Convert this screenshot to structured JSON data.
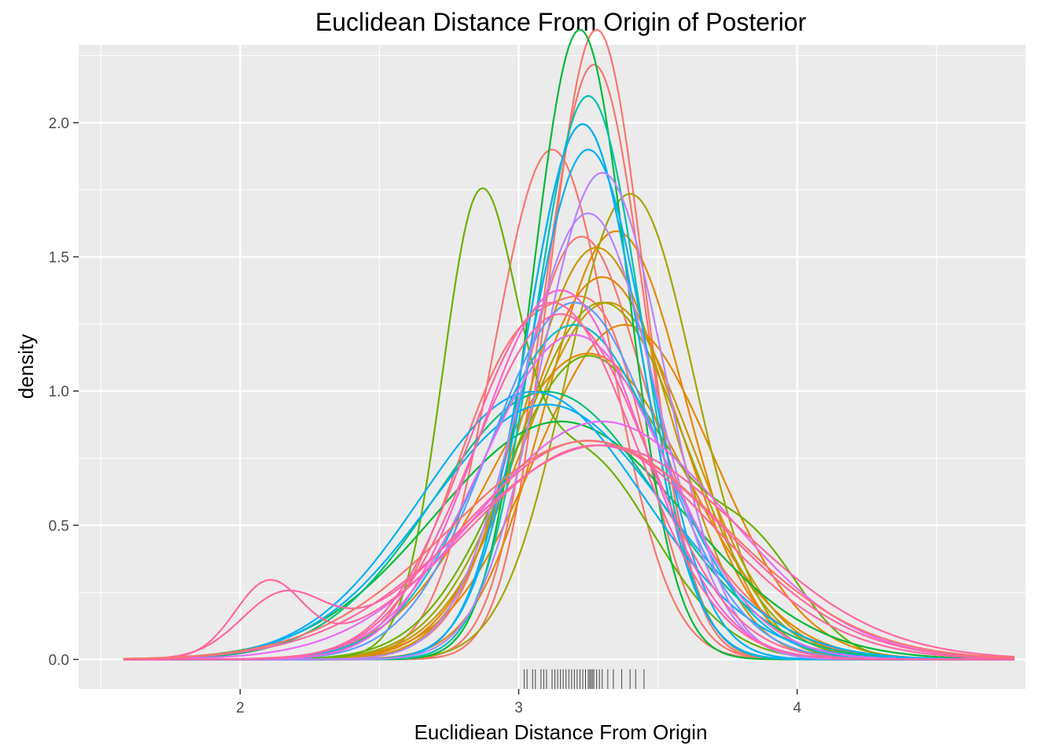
{
  "chart_data": {
    "type": "line",
    "subtype": "kernel-density-with-rug",
    "title": "Euclidean Distance From Origin of Posterior",
    "xlabel": "Euclidiean Distance From Origin",
    "ylabel": "density",
    "xlim": [
      1.42,
      4.82
    ],
    "ylim": [
      -0.11,
      2.29
    ],
    "x_ticks": [
      2,
      3,
      4
    ],
    "y_ticks": [
      0.0,
      0.5,
      1.0,
      1.5,
      2.0
    ],
    "x_tick_labels": [
      "2",
      "3",
      "4"
    ],
    "y_tick_labels": [
      "0.0",
      "0.5",
      "1.0",
      "1.5",
      "2.0"
    ],
    "grid": true,
    "legend": "none",
    "series": [
      {
        "color": "#F8766D",
        "components": [
          [
            3.28,
            0.17,
            1.0
          ]
        ]
      },
      {
        "color": "#F8766D",
        "components": [
          [
            3.27,
            0.18,
            1.0
          ]
        ]
      },
      {
        "color": "#F8766D",
        "components": [
          [
            3.12,
            0.21,
            1.0
          ]
        ]
      },
      {
        "color": "#F8766D",
        "components": [
          [
            3.03,
            0.25,
            0.75
          ],
          [
            3.35,
            0.15,
            0.25
          ]
        ]
      },
      {
        "color": "#F8766D",
        "components": [
          [
            3.2,
            0.2,
            0.55
          ],
          [
            3.38,
            0.33,
            0.45
          ]
        ]
      },
      {
        "color": "#E58700",
        "components": [
          [
            3.35,
            0.25,
            1.0
          ]
        ]
      },
      {
        "color": "#E58700",
        "components": [
          [
            3.3,
            0.28,
            1.0
          ]
        ]
      },
      {
        "color": "#E58700",
        "components": [
          [
            3.38,
            0.32,
            1.0
          ]
        ]
      },
      {
        "color": "#E58700",
        "components": [
          [
            3.25,
            0.35,
            1.0
          ]
        ]
      },
      {
        "color": "#C99800",
        "components": [
          [
            3.28,
            0.26,
            1.0
          ]
        ]
      },
      {
        "color": "#C99800",
        "components": [
          [
            3.32,
            0.3,
            1.0
          ]
        ]
      },
      {
        "color": "#A3A500",
        "components": [
          [
            3.4,
            0.23,
            1.0
          ]
        ]
      },
      {
        "color": "#A3A500",
        "components": [
          [
            3.3,
            0.3,
            1.0
          ]
        ]
      },
      {
        "color": "#6BB100",
        "components": [
          [
            2.85,
            0.13,
            0.45
          ],
          [
            3.2,
            0.28,
            0.55
          ]
        ]
      },
      {
        "color": "#6BB100",
        "components": [
          [
            3.25,
            0.3,
            0.85
          ],
          [
            3.85,
            0.18,
            0.15
          ]
        ]
      },
      {
        "color": "#00BA38",
        "components": [
          [
            3.22,
            0.17,
            1.0
          ]
        ]
      },
      {
        "color": "#00BA38",
        "components": [
          [
            3.15,
            0.45,
            1.0
          ]
        ]
      },
      {
        "color": "#00BF7D",
        "components": [
          [
            3.23,
            0.2,
            1.0
          ]
        ]
      },
      {
        "color": "#00BF7D",
        "components": [
          [
            3.1,
            0.4,
            1.0
          ]
        ]
      },
      {
        "color": "#00C0AF",
        "components": [
          [
            3.25,
            0.19,
            1.0
          ]
        ]
      },
      {
        "color": "#00BCD8",
        "components": [
          [
            3.2,
            0.32,
            1.0
          ]
        ]
      },
      {
        "color": "#00B0F6",
        "components": [
          [
            3.23,
            0.2,
            1.0
          ]
        ]
      },
      {
        "color": "#00B0F6",
        "components": [
          [
            3.25,
            0.21,
            1.0
          ]
        ]
      },
      {
        "color": "#00B0F6",
        "components": [
          [
            3.1,
            0.42,
            1.0
          ]
        ]
      },
      {
        "color": "#00B0F6",
        "components": [
          [
            3.05,
            0.4,
            1.0
          ]
        ]
      },
      {
        "color": "#619CFF",
        "components": [
          [
            3.2,
            0.3,
            1.0
          ]
        ]
      },
      {
        "color": "#B983FF",
        "components": [
          [
            3.3,
            0.22,
            1.0
          ]
        ]
      },
      {
        "color": "#B983FF",
        "components": [
          [
            3.25,
            0.24,
            1.0
          ]
        ]
      },
      {
        "color": "#E76BF3",
        "components": [
          [
            3.2,
            0.33,
            1.0
          ]
        ]
      },
      {
        "color": "#E76BF3",
        "components": [
          [
            3.3,
            0.45,
            1.0
          ]
        ]
      },
      {
        "color": "#FD61D1",
        "components": [
          [
            3.15,
            0.29,
            1.0
          ]
        ]
      },
      {
        "color": "#FF67A4",
        "components": [
          [
            3.12,
            0.3,
            1.0
          ]
        ]
      },
      {
        "color": "#FF67A4",
        "components": [
          [
            3.15,
            0.31,
            1.0
          ]
        ]
      },
      {
        "color": "#FF67A4",
        "components": [
          [
            3.28,
            0.46,
            0.92
          ],
          [
            2.1,
            0.12,
            0.08
          ]
        ]
      },
      {
        "color": "#FF67A4",
        "components": [
          [
            3.25,
            0.45,
            0.92
          ],
          [
            2.15,
            0.15,
            0.08
          ]
        ]
      },
      {
        "color": "#FF67A4",
        "components": [
          [
            3.3,
            0.5,
            1.0
          ]
        ]
      },
      {
        "color": "#F8766D",
        "components": [
          [
            3.25,
            0.49,
            1.0
          ]
        ]
      }
    ],
    "rug": [
      3.02,
      3.03,
      3.05,
      3.06,
      3.08,
      3.09,
      3.1,
      3.12,
      3.13,
      3.14,
      3.15,
      3.16,
      3.17,
      3.18,
      3.19,
      3.2,
      3.21,
      3.22,
      3.23,
      3.24,
      3.25,
      3.255,
      3.26,
      3.265,
      3.27,
      3.28,
      3.29,
      3.3,
      3.32,
      3.34,
      3.37,
      3.4,
      3.42,
      3.45
    ],
    "colors": {
      "panel_background": "#EBEBEB",
      "grid_major": "#FFFFFF",
      "tick_label": "#4D4D4D"
    }
  }
}
